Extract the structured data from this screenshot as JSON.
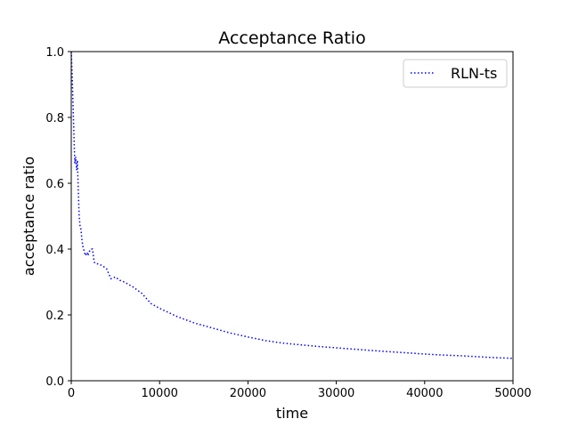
{
  "chart_data": {
    "type": "line",
    "title": "Acceptance Ratio",
    "xlabel": "time",
    "ylabel": "acceptance ratio",
    "xlim": [
      0,
      50000
    ],
    "ylim": [
      0.0,
      1.0
    ],
    "xticks": [
      0,
      10000,
      20000,
      30000,
      40000,
      50000
    ],
    "xtick_labels": [
      "0",
      "10000",
      "20000",
      "30000",
      "40000",
      "50000"
    ],
    "yticks": [
      0.0,
      0.2,
      0.4,
      0.6,
      0.8,
      1.0
    ],
    "ytick_labels": [
      "0.0",
      "0.2",
      "0.4",
      "0.6",
      "0.8",
      "1.0"
    ],
    "grid": false,
    "legend_position": "top-right",
    "series": [
      {
        "name": "RLN-ts",
        "color": "#0000ff",
        "line_style": "dotted",
        "x": [
          0,
          100,
          200,
          300,
          400,
          500,
          600,
          700,
          800,
          900,
          1000,
          1100,
          1200,
          1300,
          1400,
          1500,
          1600,
          1700,
          1800,
          1900,
          2000,
          2200,
          2400,
          2600,
          2800,
          3000,
          3500,
          4000,
          4500,
          5000,
          5500,
          6000,
          7000,
          8000,
          9000,
          10000,
          12000,
          14000,
          16000,
          18000,
          20000,
          22000,
          24000,
          26000,
          28000,
          30000,
          32000,
          34000,
          36000,
          38000,
          40000,
          42000,
          44000,
          46000,
          48000,
          50000
        ],
        "y": [
          1.0,
          0.93,
          0.84,
          0.75,
          0.66,
          0.68,
          0.64,
          0.67,
          0.58,
          0.5,
          0.47,
          0.46,
          0.43,
          0.41,
          0.4,
          0.39,
          0.38,
          0.385,
          0.39,
          0.38,
          0.39,
          0.4,
          0.4,
          0.36,
          0.355,
          0.355,
          0.35,
          0.34,
          0.31,
          0.315,
          0.305,
          0.3,
          0.285,
          0.265,
          0.235,
          0.22,
          0.195,
          0.175,
          0.16,
          0.145,
          0.133,
          0.122,
          0.114,
          0.109,
          0.104,
          0.1,
          0.096,
          0.092,
          0.088,
          0.085,
          0.081,
          0.078,
          0.076,
          0.073,
          0.07,
          0.068
        ]
      }
    ]
  }
}
